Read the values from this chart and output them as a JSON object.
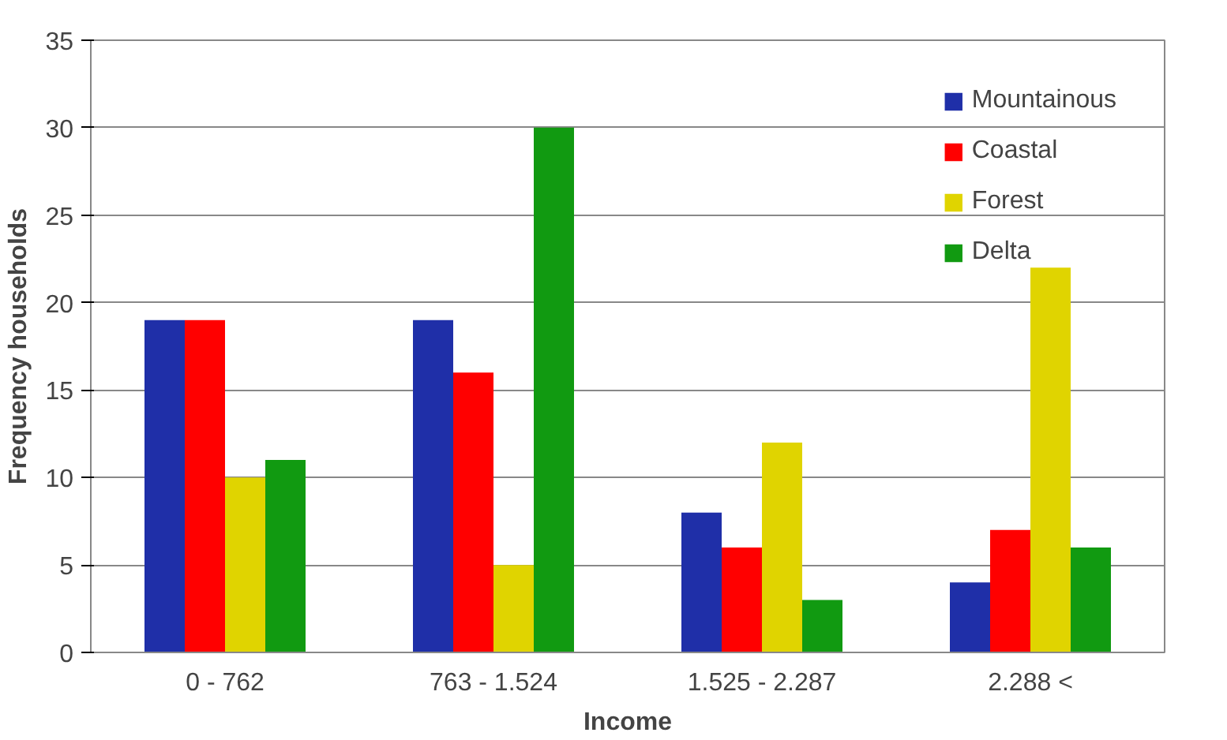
{
  "chart_data": {
    "type": "bar",
    "xlabel": "Income",
    "ylabel": "Frequency households",
    "categories": [
      "0 - 762",
      "763 - 1.524",
      "1.525 - 2.287",
      "2.288 <"
    ],
    "series": [
      {
        "name": "Mountainous",
        "color": "#1f2fa8",
        "values": [
          19,
          19,
          8,
          4
        ]
      },
      {
        "name": "Coastal",
        "color": "#ff0000",
        "values": [
          19,
          16,
          6,
          7
        ]
      },
      {
        "name": "Forest",
        "color": "#e0d400",
        "values": [
          10,
          5,
          12,
          22
        ]
      },
      {
        "name": "Delta",
        "color": "#119a11",
        "values": [
          11,
          30,
          3,
          6
        ]
      }
    ],
    "ylim": [
      0,
      35
    ],
    "yticks": [
      0,
      5,
      10,
      15,
      20,
      25,
      30,
      35
    ],
    "grid": "y",
    "legend": "top right"
  }
}
